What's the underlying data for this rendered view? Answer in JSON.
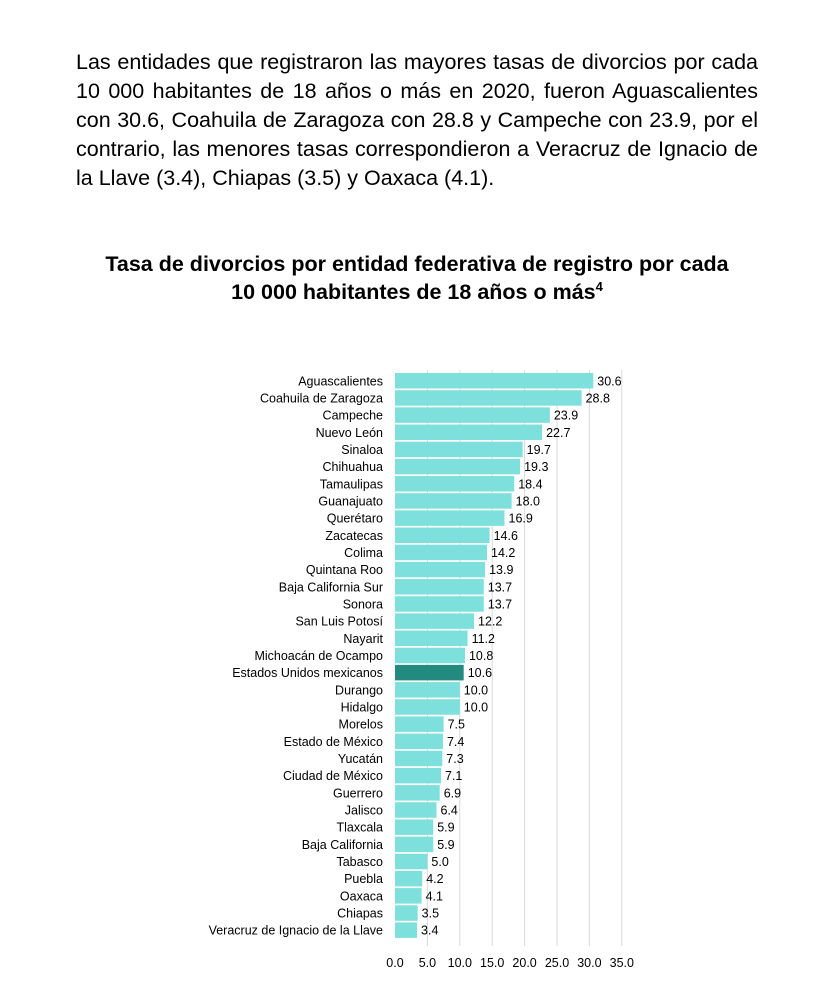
{
  "paragraph": "Las entidades que registraron las mayores tasas de divorcios por cada 10 000 habitantes de 18 años o más en 2020, fueron Aguascalientes con 30.6, Coahuila de Zaragoza con 28.8 y Campeche con 23.9, por el contrario, las menores tasas correspondieron a Veracruz de Ignacio de la Llave (3.4), Chiapas (3.5) y Oaxaca (4.1).",
  "chart_title": {
    "line1": "Tasa de divorcios por entidad federativa de registro por cada",
    "line2": "10 000 habitantes de 18 años o más",
    "footnote": "4"
  },
  "colors": {
    "bar": "#7ee0dc",
    "highlight": "#238a80",
    "grid": "#d9d9d9"
  },
  "chart_data": {
    "type": "bar",
    "orientation": "horizontal",
    "title": "Tasa de divorcios por entidad federativa de registro por cada 10 000 habitantes de 18 años o más",
    "xlim": [
      0,
      35
    ],
    "xticks": [
      "0.0",
      "5.0",
      "10.0",
      "15.0",
      "20.0",
      "25.0",
      "30.0",
      "35.0"
    ],
    "grid": true,
    "highlight_category": "Estados Unidos mexicanos",
    "categories": [
      "Aguascalientes",
      "Coahuila de Zaragoza",
      "Campeche",
      "Nuevo León",
      "Sinaloa",
      "Chihuahua",
      "Tamaulipas",
      "Guanajuato",
      "Querétaro",
      "Zacatecas",
      "Colima",
      "Quintana Roo",
      "Baja California Sur",
      "Sonora",
      "San Luis Potosí",
      "Nayarit",
      "Michoacán de Ocampo",
      "Estados Unidos mexicanos",
      "Durango",
      "Hidalgo",
      "Morelos",
      "Estado de México",
      "Yucatán",
      "Ciudad de México",
      "Guerrero",
      "Jalisco",
      "Tlaxcala",
      "Baja California",
      "Tabasco",
      "Puebla",
      "Oaxaca",
      "Chiapas",
      "Veracruz de Ignacio de la Llave"
    ],
    "values": [
      30.6,
      28.8,
      23.9,
      22.7,
      19.7,
      19.3,
      18.4,
      18.0,
      16.9,
      14.6,
      14.2,
      13.9,
      13.7,
      13.7,
      12.2,
      11.2,
      10.8,
      10.6,
      10.0,
      10.0,
      7.5,
      7.4,
      7.3,
      7.1,
      6.9,
      6.4,
      5.9,
      5.9,
      5.0,
      4.2,
      4.1,
      3.5,
      3.4
    ]
  }
}
